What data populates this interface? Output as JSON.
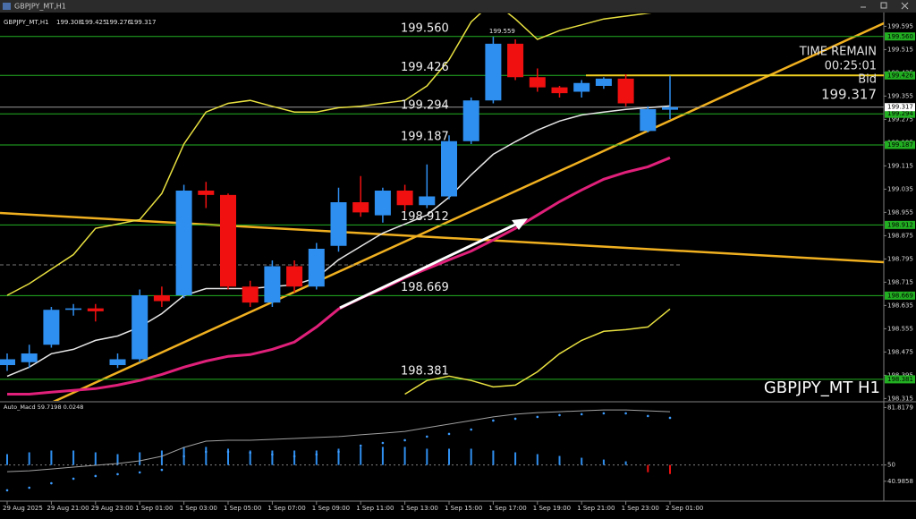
{
  "window": {
    "title": "GBPJPY_MT,H1"
  },
  "chart_data": [
    {
      "type": "candlestick",
      "symbol": "GBPJPY_MT,H1",
      "header_values": [
        199.308,
        199.425,
        199.276,
        199.317
      ],
      "categories": [
        "29 Aug 2025",
        null,
        "29 Aug 21:00",
        null,
        "29 Aug 23:00",
        null,
        "1 Sep 01:00",
        null,
        "1 Sep 03:00",
        null,
        "1 Sep 05:00",
        null,
        "1 Sep 07:00",
        null,
        "1 Sep 09:00",
        null,
        "1 Sep 11:00",
        null,
        "1 Sep 13:00",
        null,
        "1 Sep 15:00",
        null,
        "1 Sep 17:00",
        null,
        "1 Sep 19:00",
        null,
        "1 Sep 21:00",
        null,
        "1 Sep 23:00",
        null,
        "2 Sep 01:00"
      ],
      "open": [
        198.43,
        198.44,
        198.5,
        198.62,
        198.625,
        198.43,
        198.45,
        198.67,
        198.67,
        199.03,
        199.015,
        198.7,
        198.645,
        198.77,
        198.7,
        198.84,
        198.99,
        198.945,
        199.03,
        198.98,
        199.01,
        199.2,
        199.34,
        199.535,
        199.42,
        199.385,
        199.37,
        199.39,
        199.415,
        199.235,
        199.308
      ],
      "high": [
        198.47,
        198.5,
        198.63,
        198.64,
        198.64,
        198.47,
        198.69,
        198.7,
        199.05,
        199.06,
        199.02,
        198.72,
        198.79,
        198.79,
        198.85,
        199.04,
        199.08,
        199.04,
        199.05,
        199.12,
        199.22,
        199.35,
        199.559,
        199.55,
        199.45,
        199.39,
        199.41,
        199.42,
        199.43,
        199.32,
        199.425
      ],
      "low": [
        198.41,
        198.42,
        198.49,
        198.6,
        198.58,
        198.42,
        198.44,
        198.63,
        198.66,
        198.97,
        198.69,
        198.63,
        198.63,
        198.68,
        198.69,
        198.82,
        198.94,
        198.92,
        198.96,
        198.97,
        199.0,
        199.19,
        199.33,
        199.41,
        199.37,
        199.35,
        199.35,
        199.38,
        199.32,
        199.23,
        199.276
      ],
      "close": [
        198.45,
        198.47,
        198.62,
        198.625,
        198.615,
        198.45,
        198.67,
        198.65,
        199.03,
        199.015,
        198.7,
        198.645,
        198.77,
        198.7,
        198.83,
        198.99,
        198.955,
        199.03,
        198.98,
        199.01,
        199.2,
        199.34,
        199.535,
        199.42,
        199.385,
        199.365,
        199.4,
        199.415,
        199.33,
        199.31,
        199.317
      ],
      "up_color": "#2f8ff0",
      "down_color": "#f01010",
      "ylim": [
        198.31,
        199.63
      ],
      "yticks": [
        199.595,
        199.515,
        199.435,
        199.355,
        199.275,
        199.195,
        199.115,
        199.035,
        198.955,
        198.875,
        198.795,
        198.715,
        198.635,
        198.555,
        198.475,
        198.395,
        198.315
      ],
      "levels": [
        {
          "value": 199.56,
          "label": "199.560"
        },
        199.426,
        199.294,
        199.187,
        198.912,
        198.669,
        198.381
      ],
      "level_color": "#22b022",
      "overlays": [
        {
          "color": "#e8e040",
          "width": 1.5,
          "values": [
            198.67,
            198.71,
            198.76,
            198.81,
            198.9,
            198.915,
            198.93,
            199.02,
            199.19,
            199.3,
            199.33,
            199.34,
            199.32,
            199.3,
            199.3,
            199.315,
            199.32,
            199.33,
            199.34,
            199.39,
            199.48,
            199.61,
            199.68,
            199.62,
            199.55,
            199.58,
            199.6,
            199.62,
            199.63,
            199.64,
            199.65
          ]
        },
        {
          "color": "#e8e040",
          "width": 1.5,
          "values": [
            null,
            null,
            null,
            null,
            null,
            null,
            null,
            null,
            null,
            null,
            null,
            null,
            null,
            null,
            null,
            null,
            null,
            null,
            198.33,
            198.377,
            198.392,
            198.377,
            198.355,
            198.361,
            198.407,
            198.469,
            198.515,
            198.546,
            198.552,
            198.561,
            198.623
          ]
        },
        {
          "color": "#e6e6e6",
          "width": 1.5,
          "values": [
            198.392,
            198.423,
            198.469,
            198.484,
            198.515,
            198.53,
            198.561,
            198.607,
            198.669,
            198.693,
            198.693,
            198.693,
            198.7,
            198.706,
            198.73,
            198.792,
            198.838,
            198.884,
            198.915,
            198.946,
            199.007,
            199.084,
            199.155,
            199.198,
            199.238,
            199.269,
            199.29,
            199.3,
            199.309,
            199.315,
            199.321
          ]
        },
        {
          "color": "#e0207a",
          "width": 3,
          "values": [
            198.33,
            198.33,
            198.337,
            198.343,
            198.349,
            198.361,
            198.377,
            198.398,
            198.423,
            198.444,
            198.46,
            198.466,
            198.484,
            198.509,
            198.561,
            198.623,
            198.66,
            198.693,
            198.73,
            198.761,
            198.792,
            198.822,
            198.86,
            198.9,
            198.946,
            198.992,
            199.032,
            199.069,
            199.093,
            199.112,
            199.143
          ]
        }
      ],
      "bid": 199.317,
      "time_remain_label": "TIME REMAIN",
      "time_remain": "00:25:01",
      "bid_label": "Bid",
      "watermark": "GBPJPY_MT H1"
    },
    {
      "type": "oscillator",
      "title": "Auto_Macd 59.7198 0.0248",
      "ylim": [
        30,
        83.5
      ],
      "yticks": [
        81.8179,
        50,
        40.9858
      ],
      "histogram": [
        56,
        57,
        58,
        58,
        57,
        56,
        57,
        58,
        60,
        60,
        59,
        58,
        58,
        58,
        58,
        59,
        60,
        60,
        60,
        59,
        59,
        59,
        58,
        57,
        56,
        55,
        54,
        53,
        52,
        46,
        45
      ],
      "up_color": "#2f8ff0",
      "down_color": "#f01010",
      "series": [
        {
          "color": "#a0a0a0",
          "style": "line",
          "values": [
            46.3,
            46.8,
            47.8,
            48.8,
            49.8,
            50.8,
            52.3,
            54.8,
            59.7,
            63.2,
            63.7,
            63.7,
            64.2,
            64.7,
            65.2,
            65.7,
            66.7,
            67.6,
            68.6,
            70.6,
            72.6,
            74.6,
            76.6,
            78.1,
            79.0,
            79.5,
            80.0,
            80.5,
            80.5,
            80.0,
            79.5
          ]
        },
        {
          "color": "#3c9cff",
          "style": "dots",
          "values": [
            36.0,
            37.4,
            39.9,
            42.4,
            43.9,
            44.9,
            45.9,
            47.3,
            54.8,
            57.3,
            57.3,
            56.8,
            55.8,
            54.8,
            55.8,
            57.3,
            60.7,
            62.2,
            63.7,
            65.7,
            67.2,
            69.6,
            74.6,
            75.6,
            76.6,
            77.6,
            78.1,
            78.6,
            78.6,
            77.1,
            76.1
          ]
        }
      ]
    }
  ]
}
